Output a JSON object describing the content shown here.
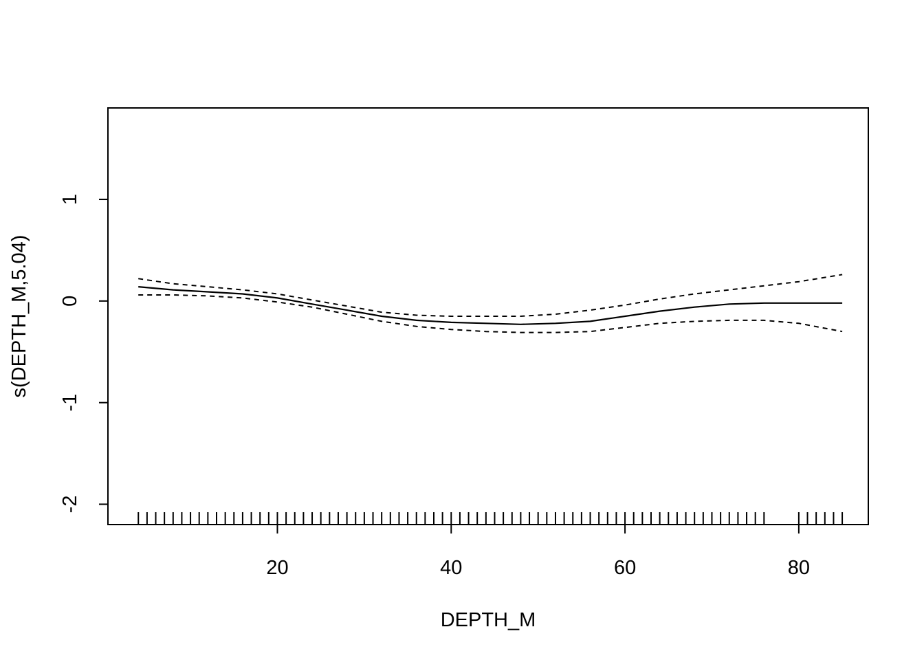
{
  "chart_data": {
    "type": "line",
    "title": "",
    "xlabel": "DEPTH_M",
    "ylabel": "s(DEPTH_M,5.04)",
    "xlim": [
      0.5,
      88.0
    ],
    "ylim": [
      -2.2,
      1.9
    ],
    "x_ticks": [
      20,
      40,
      60,
      80
    ],
    "x_tick_labels": [
      "20",
      "40",
      "60",
      "80"
    ],
    "y_ticks": [
      -2,
      -1,
      0,
      1
    ],
    "y_tick_labels": [
      "-2",
      "-1",
      "0",
      "1"
    ],
    "grid": false,
    "legend": "none",
    "series": [
      {
        "role": "fit",
        "line_style": "solid",
        "x": [
          4,
          8,
          12,
          16,
          20,
          24,
          28,
          32,
          36,
          40,
          44,
          48,
          52,
          56,
          60,
          64,
          68,
          72,
          76,
          80,
          85
        ],
        "y": [
          0.14,
          0.11,
          0.09,
          0.07,
          0.03,
          -0.03,
          -0.09,
          -0.15,
          -0.19,
          -0.21,
          -0.22,
          -0.23,
          -0.22,
          -0.2,
          -0.15,
          -0.1,
          -0.06,
          -0.03,
          -0.02,
          -0.02,
          -0.02
        ]
      },
      {
        "role": "upper",
        "line_style": "dashed",
        "x": [
          4,
          8,
          12,
          16,
          20,
          24,
          28,
          32,
          36,
          40,
          44,
          48,
          52,
          56,
          60,
          64,
          68,
          72,
          76,
          80,
          85
        ],
        "y": [
          0.22,
          0.17,
          0.14,
          0.11,
          0.07,
          0.01,
          -0.05,
          -0.11,
          -0.14,
          -0.15,
          -0.15,
          -0.15,
          -0.13,
          -0.09,
          -0.04,
          0.02,
          0.07,
          0.11,
          0.15,
          0.19,
          0.26
        ]
      },
      {
        "role": "lower",
        "line_style": "dashed",
        "x": [
          4,
          8,
          12,
          16,
          20,
          24,
          28,
          32,
          36,
          40,
          44,
          48,
          52,
          56,
          60,
          64,
          68,
          72,
          76,
          80,
          85
        ],
        "y": [
          0.06,
          0.06,
          0.05,
          0.03,
          -0.01,
          -0.06,
          -0.13,
          -0.2,
          -0.25,
          -0.28,
          -0.3,
          -0.31,
          -0.31,
          -0.3,
          -0.26,
          -0.22,
          -0.2,
          -0.19,
          -0.19,
          -0.22,
          -0.3
        ]
      }
    ],
    "rug": [
      4,
      5,
      6,
      7,
      8,
      9,
      10,
      11,
      12,
      13,
      14,
      15,
      16,
      17,
      18,
      19,
      20,
      21,
      22,
      23,
      24,
      25,
      26,
      27,
      28,
      29,
      30,
      31,
      32,
      33,
      34,
      35,
      36,
      37,
      38,
      39,
      40,
      41,
      42,
      43,
      44,
      45,
      46,
      47,
      48,
      49,
      50,
      51,
      52,
      53,
      54,
      55,
      56,
      57,
      58,
      59,
      60,
      61,
      62,
      63,
      64,
      65,
      66,
      67,
      68,
      69,
      70,
      71,
      72,
      73,
      74,
      75,
      76,
      80,
      81,
      82,
      83,
      84,
      85
    ]
  }
}
